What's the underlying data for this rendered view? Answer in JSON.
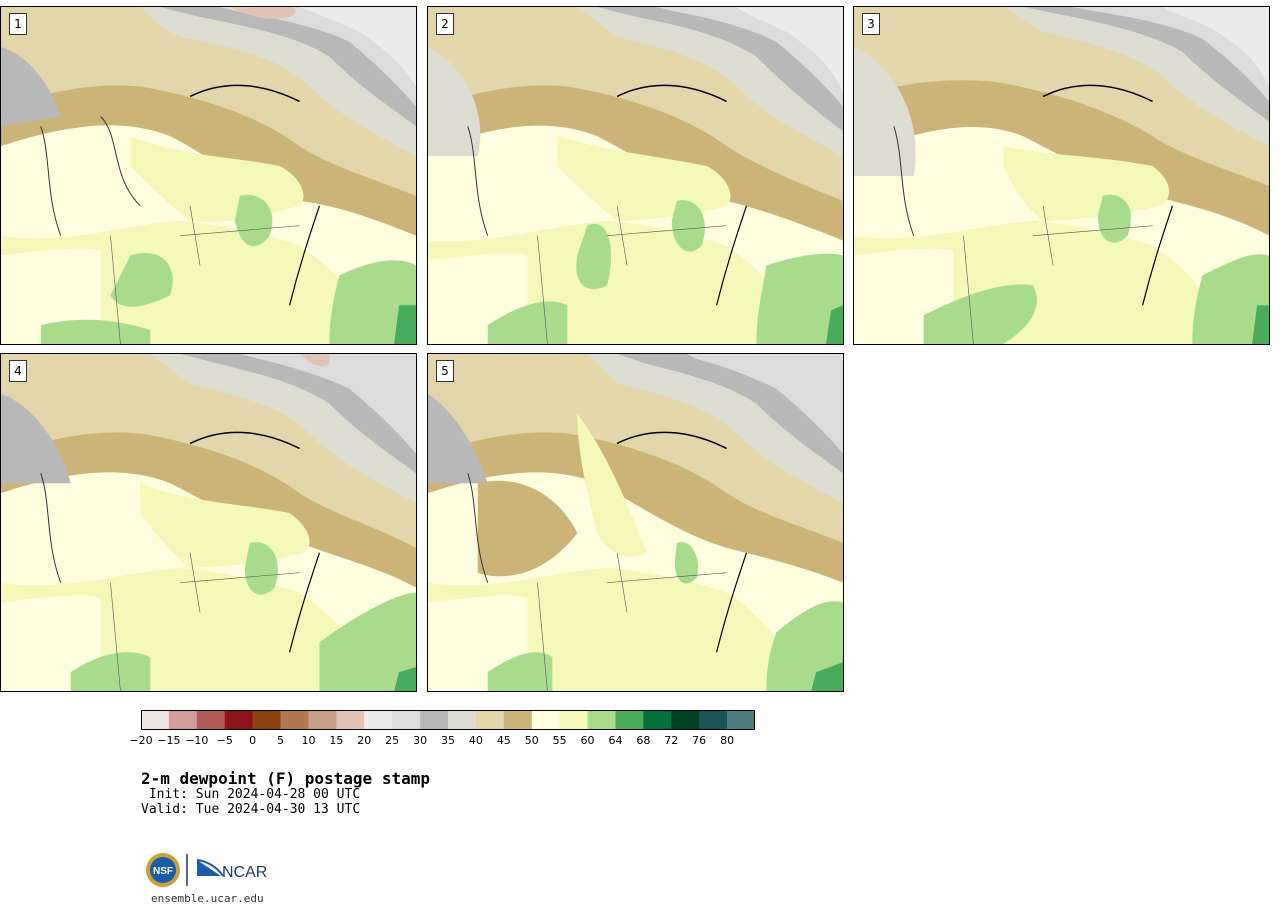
{
  "panels": [
    {
      "number": "1"
    },
    {
      "number": "2"
    },
    {
      "number": "3"
    },
    {
      "number": "4"
    },
    {
      "number": "5"
    }
  ],
  "colorbar": {
    "colors": [
      "#f0e4e4",
      "#d09c9c",
      "#b05a5a",
      "#8b1418",
      "#8b4513",
      "#b07850",
      "#c8a08a",
      "#e0c4b4",
      "#ececec",
      "#dcdcdc",
      "#b8b8b8",
      "#dcdcd0",
      "#e2d6aa",
      "#ccb478",
      "#ffffe0",
      "#f4f8b8",
      "#a8dc8c",
      "#48ac5c",
      "#00703a",
      "#004024",
      "#1e5458",
      "#4e7c80"
    ],
    "tick_labels": [
      "−20",
      "−15",
      "−10",
      "−5",
      "0",
      "5",
      "10",
      "15",
      "20",
      "25",
      "30",
      "35",
      "40",
      "45",
      "50",
      "55",
      "60",
      "64",
      "68",
      "72",
      "76",
      "80"
    ]
  },
  "title": "2-m dewpoint (F) postage stamp",
  "init": " Init: Sun 2024-04-28 00 UTC",
  "valid": "Valid: Tue 2024-04-30 13 UTC",
  "logos": {
    "nsf_text": "NSF",
    "ncar_text": "NCAR"
  },
  "footer": "ensemble.ucar.edu"
}
